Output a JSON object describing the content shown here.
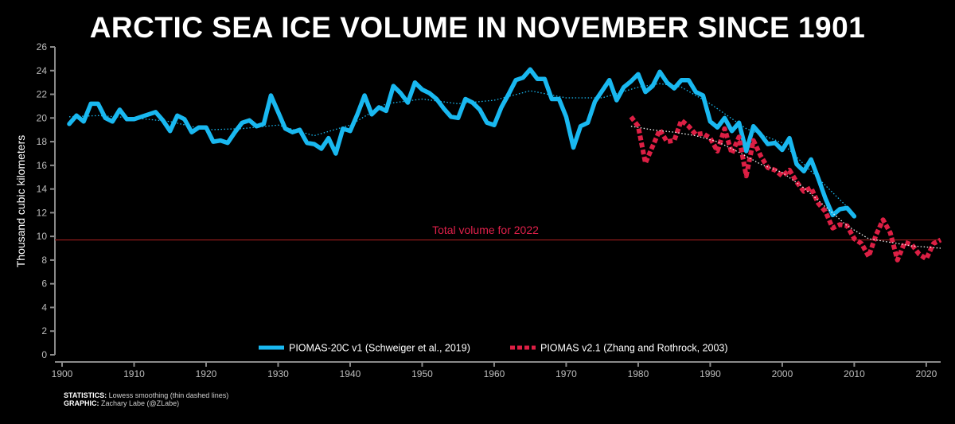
{
  "colors": {
    "background": "#000000",
    "piomas20c": "#19b8f0",
    "piomas21": "#dc1f44",
    "reference_line": "#8b1a1a",
    "axis": "#8a8a8a"
  },
  "chart_data": {
    "type": "line",
    "title": "ARCTIC SEA ICE VOLUME IN NOVEMBER SINCE 1901",
    "xlabel": "",
    "ylabel": "Thousand cubic kilometers",
    "xlim": [
      1900,
      2022
    ],
    "ylim": [
      0,
      26
    ],
    "xticks": [
      1900,
      1910,
      1920,
      1930,
      1940,
      1950,
      1960,
      1970,
      1980,
      1990,
      2000,
      2010,
      2020
    ],
    "yticks": [
      0,
      2,
      4,
      6,
      8,
      10,
      12,
      14,
      16,
      18,
      20,
      22,
      24,
      26
    ],
    "grid": false,
    "legend": "bottom-center",
    "annotation": {
      "text": "Total volume for 2022",
      "value": 9.7
    },
    "series": [
      {
        "name": "PIOMAS-20C v1 (Schweiger et al., 2019)",
        "style": "solid",
        "color": "#19b8f0",
        "x": [
          1901,
          1902,
          1903,
          1904,
          1905,
          1906,
          1907,
          1908,
          1909,
          1910,
          1911,
          1912,
          1913,
          1914,
          1915,
          1916,
          1917,
          1918,
          1919,
          1920,
          1921,
          1922,
          1923,
          1924,
          1925,
          1926,
          1927,
          1928,
          1929,
          1930,
          1931,
          1932,
          1933,
          1934,
          1935,
          1936,
          1937,
          1938,
          1939,
          1940,
          1941,
          1942,
          1943,
          1944,
          1945,
          1946,
          1947,
          1948,
          1949,
          1950,
          1951,
          1952,
          1953,
          1954,
          1955,
          1956,
          1957,
          1958,
          1959,
          1960,
          1961,
          1962,
          1963,
          1964,
          1965,
          1966,
          1967,
          1968,
          1969,
          1970,
          1971,
          1972,
          1973,
          1974,
          1975,
          1976,
          1977,
          1978,
          1979,
          1980,
          1981,
          1982,
          1983,
          1984,
          1985,
          1986,
          1987,
          1988,
          1989,
          1990,
          1991,
          1992,
          1993,
          1994,
          1995,
          1996,
          1997,
          1998,
          1999,
          2000,
          2001,
          2002,
          2003,
          2004,
          2005,
          2006,
          2007,
          2008,
          2009,
          2010
        ],
        "y": [
          19.5,
          20.2,
          19.7,
          21.2,
          21.2,
          20.0,
          19.7,
          20.7,
          19.9,
          19.9,
          20.1,
          20.3,
          20.5,
          19.8,
          18.9,
          20.2,
          19.9,
          18.8,
          19.2,
          19.2,
          18.0,
          18.1,
          17.9,
          18.8,
          19.6,
          19.8,
          19.3,
          19.5,
          21.9,
          20.5,
          19.1,
          18.8,
          19.0,
          17.9,
          17.8,
          17.4,
          18.3,
          17.0,
          19.1,
          18.9,
          20.3,
          21.9,
          20.3,
          20.9,
          20.6,
          22.7,
          22.1,
          21.3,
          23.0,
          22.4,
          22.1,
          21.6,
          20.8,
          20.1,
          20.0,
          21.6,
          21.3,
          20.7,
          19.6,
          19.4,
          20.9,
          22.0,
          23.2,
          23.4,
          24.1,
          23.3,
          23.3,
          21.6,
          21.6,
          20.1,
          17.5,
          19.3,
          19.6,
          21.4,
          22.3,
          23.2,
          21.5,
          22.6,
          23.1,
          23.7,
          22.2,
          22.7,
          23.9,
          23.0,
          22.5,
          23.2,
          23.2,
          22.2,
          21.9,
          19.7,
          19.2,
          20.0,
          18.9,
          19.6,
          17.2,
          19.3,
          18.6,
          17.8,
          17.9,
          17.3,
          18.3,
          16.1,
          15.5,
          16.5,
          14.9,
          13.2,
          11.8,
          12.3,
          12.4,
          11.7
        ]
      },
      {
        "name": "PIOMAS v2.1 (Zhang and Rothrock, 2003)",
        "style": "dashed",
        "color": "#dc1f44",
        "x": [
          1979,
          1980,
          1981,
          1982,
          1983,
          1984,
          1985,
          1986,
          1987,
          1988,
          1989,
          1990,
          1991,
          1992,
          1993,
          1994,
          1995,
          1996,
          1997,
          1998,
          1999,
          2000,
          2001,
          2002,
          2003,
          2004,
          2005,
          2006,
          2007,
          2008,
          2009,
          2010,
          2011,
          2012,
          2013,
          2014,
          2015,
          2016,
          2017,
          2018,
          2019,
          2020,
          2021,
          2022
        ],
        "y": [
          20.1,
          19.3,
          16.2,
          17.6,
          19.0,
          18.0,
          18.1,
          19.8,
          19.3,
          18.6,
          18.7,
          18.3,
          17.2,
          19.1,
          17.0,
          18.4,
          15.1,
          18.1,
          16.8,
          15.8,
          15.6,
          15.1,
          15.6,
          14.6,
          13.8,
          14.1,
          12.8,
          12.1,
          10.7,
          11.0,
          10.9,
          9.8,
          9.4,
          8.3,
          10.1,
          11.4,
          10.3,
          8.0,
          9.5,
          9.3,
          8.5,
          8.1,
          9.4,
          9.7
        ]
      },
      {
        "name": "",
        "style": "dotted-smooth",
        "color": "#19b8f0",
        "x": [
          1901,
          1905,
          1910,
          1915,
          1920,
          1925,
          1930,
          1935,
          1940,
          1945,
          1950,
          1955,
          1960,
          1965,
          1970,
          1975,
          1980,
          1983,
          1986,
          1990,
          1995,
          2000,
          2005,
          2010
        ],
        "y": [
          20.1,
          20.2,
          20.0,
          19.7,
          19.0,
          19.1,
          19.4,
          18.5,
          19.4,
          21.2,
          21.6,
          21.2,
          21.5,
          22.3,
          21.7,
          21.7,
          22.6,
          22.9,
          22.6,
          21.2,
          19.1,
          17.9,
          14.9,
          11.9
        ]
      },
      {
        "name": "",
        "style": "dotted-smooth",
        "color": "#f1f1f1",
        "x": [
          1979,
          1982,
          1985,
          1988,
          1991,
          1994,
          1997,
          2000,
          2003,
          2006,
          2009,
          2012,
          2015,
          2018,
          2022
        ],
        "y": [
          19.3,
          19.0,
          18.8,
          18.5,
          18.0,
          17.1,
          16.1,
          15.4,
          14.1,
          12.5,
          10.9,
          9.8,
          9.5,
          9.2,
          9.0
        ]
      }
    ]
  },
  "footer": {
    "stats_label": "STATISTICS:",
    "stats_text": " Lowess smoothing (thin dashed lines)",
    "graphic_label": "GRAPHIC:",
    "graphic_text": " Zachary Labe (@ZLabe)"
  }
}
